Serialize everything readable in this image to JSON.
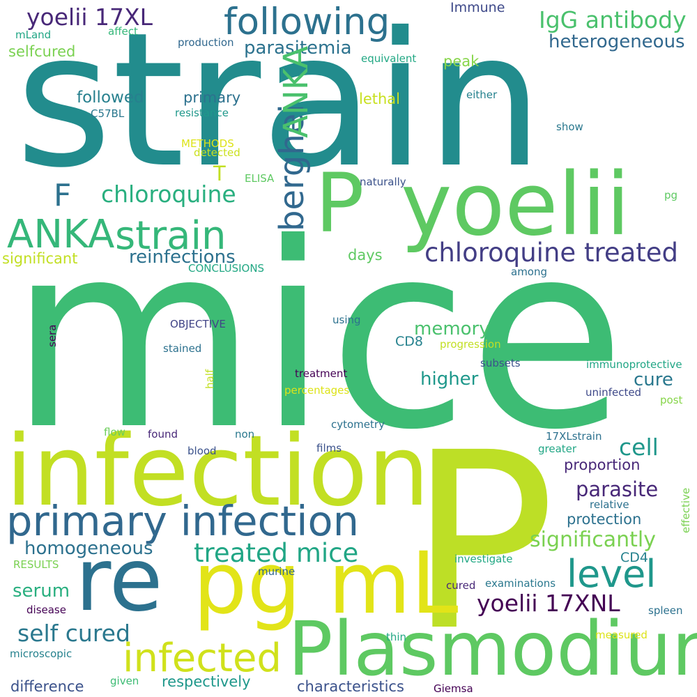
{
  "words": [
    {
      "id": "strain-large",
      "text": "strain",
      "color": "#228c8d"
    },
    {
      "id": "mice-large",
      "text": "mice",
      "color": "#3dbc74"
    },
    {
      "id": "p-large",
      "text": "P",
      "color": "#bddf26"
    },
    {
      "id": "infection",
      "text": "infection",
      "color": "#c2df23"
    },
    {
      "id": "plasmodium",
      "text": "Plasmodium",
      "color": "#5ec962"
    },
    {
      "id": "re",
      "text": "re",
      "color": "#2c718e"
    },
    {
      "id": "pg-ml",
      "text": "pg mL",
      "color": "#e2e418"
    },
    {
      "id": "yoelii",
      "text": "yoelii",
      "color": "#5ec962"
    },
    {
      "id": "p-medium",
      "text": "P",
      "color": "#5ec962"
    },
    {
      "id": "primary-infection",
      "text": "primary infection",
      "color": "#31688e"
    },
    {
      "id": "following",
      "text": "following",
      "color": "#2c718e"
    },
    {
      "id": "strain-medium",
      "text": "strain",
      "color": "#35b779"
    },
    {
      "id": "anka-horizontal",
      "text": "ANKA",
      "color": "#35b779"
    },
    {
      "id": "infected",
      "text": "infected",
      "color": "#d0e11c"
    },
    {
      "id": "level",
      "text": "level",
      "color": "#1f978b"
    },
    {
      "id": "berghei",
      "text": "berghei",
      "color": "#31688e"
    },
    {
      "id": "anka-vertical",
      "text": "ANKA",
      "color": "#4ac16d"
    },
    {
      "id": "chloroquine-treated",
      "text": "chloroquine treated",
      "color": "#433e85"
    },
    {
      "id": "treated-mice",
      "text": "treated mice",
      "color": "#21a685"
    },
    {
      "id": "yoelii-17xl",
      "text": "yoelii 17XL",
      "color": "#482878"
    },
    {
      "id": "igg-antibody",
      "text": "IgG antibody",
      "color": "#4ac16d"
    },
    {
      "id": "chloroquine",
      "text": "chloroquine",
      "color": "#29af7f"
    },
    {
      "id": "yoelii-17xnl",
      "text": "yoelii 17XNL",
      "color": "#440154"
    },
    {
      "id": "self-cured",
      "text": "self cured",
      "color": "#2a788e"
    },
    {
      "id": "f",
      "text": "F",
      "color": "#2c718e"
    },
    {
      "id": "significantly",
      "text": "significantly",
      "color": "#7ad151"
    },
    {
      "id": "homogeneous",
      "text": "homogeneous",
      "color": "#2c718e"
    },
    {
      "id": "parasitemia",
      "text": "parasitemia",
      "color": "#2c728e"
    },
    {
      "id": "heterogeneous",
      "text": "heterogeneous",
      "color": "#31688e"
    },
    {
      "id": "reinfections",
      "text": "reinfections",
      "color": "#2c718e"
    },
    {
      "id": "cell",
      "text": "cell",
      "color": "#1f978b"
    },
    {
      "id": "parasite",
      "text": "parasite",
      "color": "#482878"
    },
    {
      "id": "memory",
      "text": "memory",
      "color": "#4ac16d"
    },
    {
      "id": "higher",
      "text": "higher",
      "color": "#1f988b"
    },
    {
      "id": "cure",
      "text": "cure",
      "color": "#2a788e"
    },
    {
      "id": "followed",
      "text": "followed",
      "color": "#27808e"
    },
    {
      "id": "protection",
      "text": "protection",
      "color": "#2c718e"
    },
    {
      "id": "proportion",
      "text": "proportion",
      "color": "#482878"
    },
    {
      "id": "primary",
      "text": "primary",
      "color": "#2c718e"
    },
    {
      "id": "serum",
      "text": "serum",
      "color": "#29af7f"
    },
    {
      "id": "difference",
      "text": "difference",
      "color": "#3b528b"
    },
    {
      "id": "respectively",
      "text": "respectively",
      "color": "#1f988b"
    },
    {
      "id": "characteristics",
      "text": "characteristics",
      "color": "#3b528b"
    },
    {
      "id": "significant",
      "text": "significant",
      "color": "#c2df23"
    },
    {
      "id": "t",
      "text": "T",
      "color": "#c2df23"
    },
    {
      "id": "selfcured",
      "text": "selfcured",
      "color": "#7ad151"
    },
    {
      "id": "peak",
      "text": "peak",
      "color": "#86d549"
    },
    {
      "id": "lethal",
      "text": "lethal",
      "color": "#c8e020"
    },
    {
      "id": "days",
      "text": "days",
      "color": "#5ec962"
    },
    {
      "id": "cd8",
      "text": "CD8",
      "color": "#26828e"
    },
    {
      "id": "cd4",
      "text": "CD4",
      "color": "#26828e"
    },
    {
      "id": "immune",
      "text": "Immune",
      "color": "#3e4989"
    },
    {
      "id": "mland",
      "text": "mLand",
      "color": "#21a685"
    },
    {
      "id": "affect",
      "text": "affect",
      "color": "#35b779"
    },
    {
      "id": "production",
      "text": "production",
      "color": "#31688e"
    },
    {
      "id": "equivalent",
      "text": "equivalent",
      "color": "#22a884"
    },
    {
      "id": "either",
      "text": "either",
      "color": "#26828e"
    },
    {
      "id": "c57bl",
      "text": "C57BL",
      "color": "#2a788e"
    },
    {
      "id": "resistance",
      "text": "resistance",
      "color": "#1f988b"
    },
    {
      "id": "methods",
      "text": "METHODS",
      "color": "#dde318"
    },
    {
      "id": "detected",
      "text": "detected",
      "color": "#cae11f"
    },
    {
      "id": "elisa",
      "text": "ELISA",
      "color": "#5ec962"
    },
    {
      "id": "naturally",
      "text": "naturally",
      "color": "#3b528b"
    },
    {
      "id": "pg",
      "text": "pg",
      "color": "#5ec962"
    },
    {
      "id": "show",
      "text": "show",
      "color": "#2a788e"
    },
    {
      "id": "conclusions",
      "text": "CONCLUSIONS",
      "color": "#22a884"
    },
    {
      "id": "among",
      "text": "among",
      "color": "#2c718e"
    },
    {
      "id": "objective",
      "text": "OBJECTIVE",
      "color": "#414487"
    },
    {
      "id": "using",
      "text": "using",
      "color": "#2c718e"
    },
    {
      "id": "stained",
      "text": "stained",
      "color": "#2c718e"
    },
    {
      "id": "progression",
      "text": "progression",
      "color": "#c2df23"
    },
    {
      "id": "subsets",
      "text": "subsets",
      "color": "#3b528b"
    },
    {
      "id": "immunoprotective",
      "text": "immunoprotective",
      "color": "#21a685"
    },
    {
      "id": "treatment",
      "text": "treatment",
      "color": "#440154"
    },
    {
      "id": "percentages",
      "text": "percentages",
      "color": "#dde318"
    },
    {
      "id": "uninfected",
      "text": "uninfected",
      "color": "#3e4989"
    },
    {
      "id": "post",
      "text": "post",
      "color": "#86d549"
    },
    {
      "id": "cytometry",
      "text": "cytometry",
      "color": "#2c718e"
    },
    {
      "id": "flow",
      "text": "flow",
      "color": "#6ccd5a"
    },
    {
      "id": "found",
      "text": "found",
      "color": "#482878"
    },
    {
      "id": "non",
      "text": "non",
      "color": "#2a788e"
    },
    {
      "id": "17xlstrain",
      "text": "17XLstrain",
      "color": "#2c718e"
    },
    {
      "id": "greater",
      "text": "greater",
      "color": "#21a685"
    },
    {
      "id": "blood",
      "text": "blood",
      "color": "#3b528b"
    },
    {
      "id": "films",
      "text": "films",
      "color": "#3b528b"
    },
    {
      "id": "relative",
      "text": "relative",
      "color": "#2c718e"
    },
    {
      "id": "investigate",
      "text": "investigate",
      "color": "#22a884"
    },
    {
      "id": "results",
      "text": "RESULTS",
      "color": "#7ad151"
    },
    {
      "id": "murine",
      "text": "murine",
      "color": "#31688e"
    },
    {
      "id": "cured",
      "text": "cured",
      "color": "#482878"
    },
    {
      "id": "examinations",
      "text": "examinations",
      "color": "#2a788e"
    },
    {
      "id": "disease",
      "text": "disease",
      "color": "#440154"
    },
    {
      "id": "spleen",
      "text": "spleen",
      "color": "#2c718e"
    },
    {
      "id": "thin",
      "text": "thin",
      "color": "#22a884"
    },
    {
      "id": "measured",
      "text": "measured",
      "color": "#dde318"
    },
    {
      "id": "microscopic",
      "text": "microscopic",
      "color": "#26828e"
    },
    {
      "id": "given",
      "text": "given",
      "color": "#3dbc74"
    },
    {
      "id": "giemsa",
      "text": "Giemsa",
      "color": "#440154"
    },
    {
      "id": "sera",
      "text": "sera",
      "color": "#440154"
    },
    {
      "id": "half",
      "text": "half",
      "color": "#c2df23"
    },
    {
      "id": "effective",
      "text": "effective",
      "color": "#7ad151"
    }
  ]
}
